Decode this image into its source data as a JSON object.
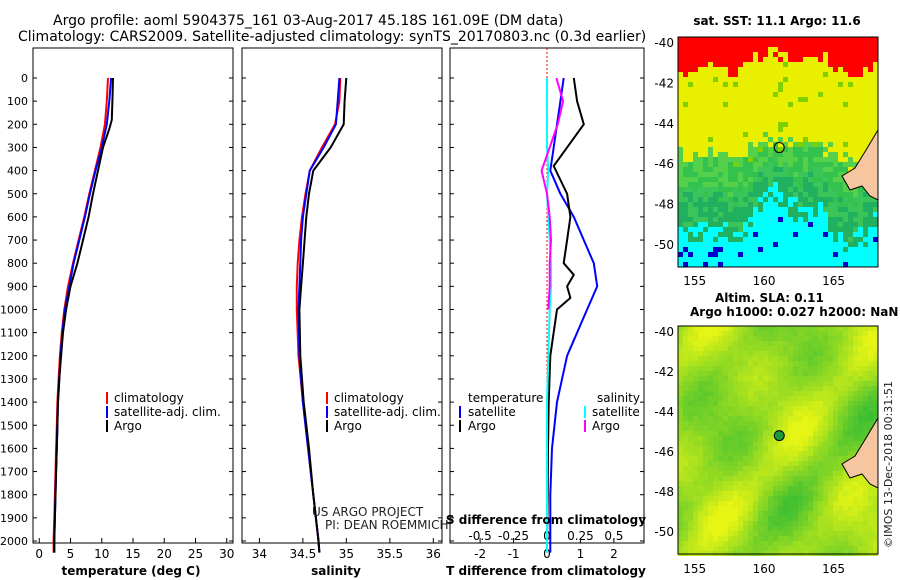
{
  "header": {
    "line1": "Argo profile: aoml 5904375_161 03-Aug-2017 45.18S 161.09E (DM data)",
    "line2": "Climatology: CARS2009. Satellite-adjusted climatology: synTS_20170803.nc (0.3d earlier)"
  },
  "credits": {
    "project": "US ARGO PROJECT",
    "pi": "PI: DEAN ROEMMICH"
  },
  "stamp": "©IMOS 13-Dec-2018 00:31:51",
  "colors": {
    "red": "#ff0000",
    "blue": "#0000ff",
    "black": "#000000",
    "cyan": "#00ffff",
    "magenta": "#ff00ff"
  },
  "chart_data": [
    {
      "id": "temperature",
      "type": "line",
      "xlabel": "temperature (deg C)",
      "xlim": [
        -1,
        31
      ],
      "xticks": [
        0,
        5,
        10,
        15,
        20,
        25,
        30
      ],
      "ylim": [
        0,
        2050
      ],
      "yticks": [
        0,
        100,
        200,
        300,
        400,
        500,
        600,
        700,
        800,
        900,
        1000,
        1100,
        1200,
        1300,
        1400,
        1500,
        1600,
        1700,
        1800,
        1900,
        2000
      ],
      "legend": [
        "climatology",
        "satellite-adj. clim.",
        "Argo"
      ],
      "series": [
        {
          "name": "climatology",
          "color": "red",
          "depth": [
            0,
            100,
            200,
            300,
            400,
            500,
            600,
            700,
            800,
            900,
            1000,
            1100,
            1200,
            1300,
            1400,
            1500,
            1600,
            1700,
            1800,
            1900,
            2000,
            2050
          ],
          "values": [
            11.0,
            10.8,
            10.5,
            9.8,
            8.9,
            8.0,
            7.2,
            6.3,
            5.4,
            4.6,
            4.0,
            3.6,
            3.3,
            3.1,
            2.9,
            2.8,
            2.7,
            2.6,
            2.5,
            2.4,
            2.3,
            2.3
          ]
        },
        {
          "name": "satellite-adj. clim.",
          "color": "blue",
          "depth": [
            0,
            100,
            200,
            300,
            400,
            500,
            600,
            700,
            800,
            900,
            1000,
            1100,
            1200,
            1300,
            1400,
            1500,
            1600,
            1700,
            1800,
            1900,
            2000,
            2050
          ],
          "values": [
            11.5,
            11.2,
            10.8,
            10.0,
            9.0,
            8.1,
            7.3,
            6.4,
            5.5,
            4.8,
            4.1,
            3.7,
            3.4,
            3.2,
            3.0,
            2.9,
            2.8,
            2.7,
            2.6,
            2.5,
            2.4,
            2.4
          ]
        },
        {
          "name": "Argo",
          "color": "black",
          "depth": [
            0,
            100,
            180,
            220,
            300,
            400,
            500,
            600,
            700,
            800,
            900,
            1000,
            1100,
            1200,
            1300,
            1400,
            1500,
            1600,
            1700,
            1800,
            1900,
            2000,
            2050
          ],
          "values": [
            11.8,
            11.7,
            11.6,
            11.2,
            10.2,
            9.4,
            8.6,
            7.9,
            7.0,
            6.1,
            5.0,
            4.3,
            3.8,
            3.5,
            3.2,
            3.0,
            2.9,
            2.8,
            2.7,
            2.6,
            2.5,
            2.4,
            2.4
          ]
        }
      ]
    },
    {
      "id": "salinity",
      "type": "line",
      "xlabel": "salinity",
      "xlim": [
        33.8,
        36.1
      ],
      "xticks": [
        34,
        34.5,
        35,
        35.5,
        36
      ],
      "ylim": [
        0,
        2050
      ],
      "legend": [
        "climatology",
        "satellite-adj. clim.",
        "Argo"
      ],
      "series": [
        {
          "name": "climatology",
          "color": "red",
          "depth": [
            0,
            100,
            200,
            300,
            400,
            500,
            600,
            700,
            800,
            900,
            1000,
            1200,
            1400,
            1600,
            1800,
            2000,
            2050
          ],
          "values": [
            34.93,
            34.92,
            34.87,
            34.72,
            34.58,
            34.53,
            34.49,
            34.46,
            34.44,
            34.43,
            34.43,
            34.45,
            34.5,
            34.56,
            34.62,
            34.68,
            34.69
          ]
        },
        {
          "name": "satellite-adj. clim.",
          "color": "blue",
          "depth": [
            0,
            100,
            200,
            300,
            400,
            500,
            600,
            700,
            800,
            900,
            1000,
            1200,
            1400,
            1600,
            1800,
            2000,
            2050
          ],
          "values": [
            34.92,
            34.9,
            34.88,
            34.74,
            34.58,
            34.54,
            34.5,
            34.48,
            34.47,
            34.46,
            34.45,
            34.46,
            34.5,
            34.56,
            34.62,
            34.68,
            34.69
          ]
        },
        {
          "name": "Argo",
          "color": "black",
          "depth": [
            0,
            100,
            200,
            300,
            400,
            500,
            600,
            700,
            800,
            900,
            1000,
            1200,
            1400,
            1600,
            1800,
            2000,
            2050
          ],
          "values": [
            35.0,
            34.98,
            34.97,
            34.82,
            34.62,
            34.57,
            34.54,
            34.52,
            34.5,
            34.48,
            34.46,
            34.47,
            34.51,
            34.57,
            34.62,
            34.68,
            34.69
          ]
        }
      ]
    },
    {
      "id": "difference",
      "type": "line",
      "xlabel": "T difference from climatology",
      "xlabel2": "S difference from climatology",
      "xlim": [
        -2.9,
        2.9
      ],
      "xticks": [
        -2,
        -1,
        0,
        1,
        2
      ],
      "sticks": [
        -0.5,
        -0.25,
        0,
        0.25,
        0.5
      ],
      "stick_labels": [
        "-0.5",
        "-0.25",
        "0",
        "0.25",
        "0.5"
      ],
      "ylim": [
        0,
        2050
      ],
      "legend_left_title": "temperature",
      "legend_right_title": "salinity",
      "legend_left": [
        "satellite",
        "Argo"
      ],
      "legend_right": [
        "satellite",
        "Argo"
      ],
      "series": [
        {
          "name": "T satellite",
          "color": "blue",
          "depth": [
            0,
            100,
            200,
            300,
            400,
            500,
            600,
            700,
            800,
            900,
            1000,
            1200,
            1400,
            1600,
            1800,
            2000,
            2050
          ],
          "values": [
            0.5,
            0.4,
            0.3,
            0.2,
            0.1,
            0.4,
            0.8,
            1.1,
            1.4,
            1.5,
            1.2,
            0.6,
            0.3,
            0.15,
            0.1,
            0.1,
            0.1
          ]
        },
        {
          "name": "T Argo",
          "color": "black",
          "depth": [
            0,
            100,
            200,
            300,
            380,
            500,
            600,
            700,
            800,
            850,
            900,
            950,
            1000,
            1200,
            1400,
            1600,
            1800,
            2000,
            2050
          ],
          "values": [
            0.8,
            0.9,
            1.1,
            0.6,
            0.2,
            0.6,
            0.7,
            0.6,
            0.5,
            0.8,
            0.6,
            0.7,
            0.3,
            0.1,
            0.05,
            0.03,
            0.02,
            0.0,
            0.0
          ]
        },
        {
          "name": "S satellite",
          "color": "cyan",
          "depth": [
            0,
            100,
            200,
            300,
            400,
            500,
            600,
            700,
            800,
            900,
            1000,
            1200,
            1400,
            1600,
            1800,
            2000,
            2050
          ],
          "values": [
            0.0,
            0.0,
            0.0,
            0.0,
            0.01,
            0.0,
            0.01,
            0.02,
            0.03,
            0.03,
            0.02,
            0.01,
            0.0,
            0.0,
            0.0,
            0.0,
            0.0
          ]
        },
        {
          "name": "S Argo",
          "color": "magenta",
          "depth": [
            0,
            100,
            200,
            300,
            400,
            500,
            600,
            700,
            800,
            900,
            1000
          ],
          "values": [
            0.07,
            0.12,
            0.08,
            0.02,
            -0.04,
            0.0,
            0.02,
            0.03,
            0.02,
            0.02,
            0.01
          ]
        }
      ]
    },
    {
      "id": "sst_map",
      "type": "heatmap",
      "title": "sat. SST: 11.1  Argo: 11.6",
      "xticks": [
        155,
        160,
        165
      ],
      "yticks": [
        -40,
        -42,
        -44,
        -46,
        -48,
        -50
      ],
      "lon_range": [
        153.8,
        168.2
      ],
      "lat_range": [
        -51.1,
        -39.7
      ],
      "float_position": {
        "lon": 161.09,
        "lat": -45.18
      }
    },
    {
      "id": "sla_map",
      "type": "heatmap",
      "title": "Altim. SLA: 0.11",
      "subtitle": "Argo h1000: 0.027  h2000: NaN",
      "xticks": [
        155,
        160,
        165
      ],
      "yticks": [
        -40,
        -42,
        -44,
        -46,
        -48,
        -50
      ],
      "lon_range": [
        153.8,
        168.2
      ],
      "lat_range": [
        -51.1,
        -39.7
      ],
      "float_position": {
        "lon": 161.09,
        "lat": -45.18
      }
    }
  ]
}
